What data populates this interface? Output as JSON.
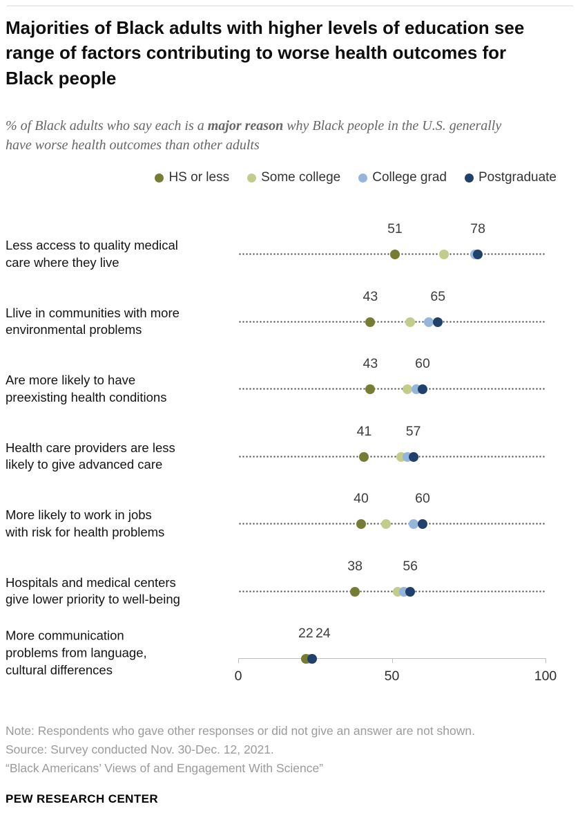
{
  "page": {
    "background": "#ffffff",
    "top_rule_color": "#dcdcdc"
  },
  "header": {
    "title": "Majorities of Black adults with higher levels of education see range of factors contributing to worse health outcomes for Black people",
    "subtitle_prefix": "% of Black adults who say each is a ",
    "subtitle_bold": "major reason",
    "subtitle_suffix": " why Black people in the U.S. generally have worse health outcomes than other adults"
  },
  "chart_data": {
    "type": "scatter",
    "subtype": "dot-plot-by-education",
    "title": "Majorities of Black adults with higher levels of education see range of factors contributing to worse health outcomes for Black people",
    "xlabel": "",
    "ylabel": "",
    "xlim": [
      0,
      100
    ],
    "grid": "dotted leader line per row",
    "legend_position": "top-right",
    "axis_ticks": [
      "0",
      "50",
      "100"
    ],
    "axis_tick_values": [
      0,
      50,
      100
    ],
    "value_labels_shown": "lowest (HS or less) and highest (Postgraduate) values only",
    "series": [
      {
        "name": "HS or less",
        "color": "#767c34"
      },
      {
        "name": "Some college",
        "color": "#c4cc8c"
      },
      {
        "name": "College grad",
        "color": "#95b5da"
      },
      {
        "name": "Postgraduate",
        "color": "#21406b"
      }
    ],
    "rows": [
      {
        "label": "Less access to quality medical\ncare where they live",
        "values": [
          51,
          67,
          77,
          78
        ]
      },
      {
        "label": "Llive in communities with more\nenvironmental problems",
        "values": [
          43,
          56,
          62,
          65
        ]
      },
      {
        "label": "Are more likely to have\npreexisting health conditions",
        "values": [
          43,
          55,
          58,
          60
        ]
      },
      {
        "label": "Health care providers are less\nlikely to give advanced care",
        "values": [
          41,
          53,
          55,
          57
        ]
      },
      {
        "label": "More likely to work in jobs\nwith risk for health problems",
        "values": [
          40,
          48,
          57,
          60
        ]
      },
      {
        "label": "Hospitals and medical centers\ngive lower priority to well-being",
        "values": [
          38,
          52,
          54,
          56
        ]
      },
      {
        "label": "More communication\nproblems from language,\ncultural differences",
        "values": [
          22,
          23,
          24,
          24
        ]
      }
    ]
  },
  "footer": {
    "note": "Note: Respondents who gave other responses or did not give an answer are not shown.",
    "source": "Source: Survey conducted Nov. 30-Dec. 12, 2021.",
    "citation": "“Black Americans’ Views of and Engagement With Science”",
    "brand": "PEW RESEARCH CENTER"
  }
}
